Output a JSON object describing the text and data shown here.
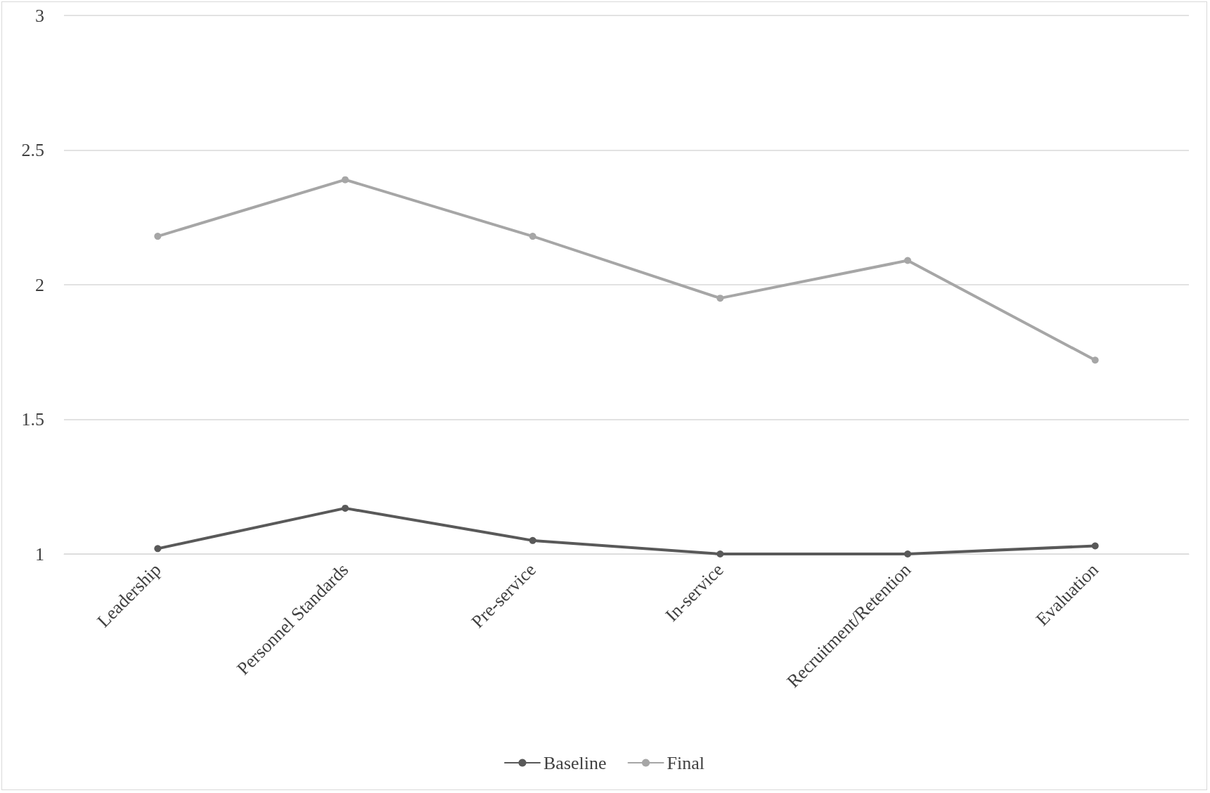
{
  "chart_data": {
    "type": "line",
    "categories": [
      "Leadership",
      "Personnel Standards",
      "Pre-service",
      "In-service",
      "Recruitment/Retention",
      "Evaluation"
    ],
    "series": [
      {
        "name": "Baseline",
        "color": "#595959",
        "values": [
          1.02,
          1.17,
          1.05,
          1.0,
          1.0,
          1.03
        ]
      },
      {
        "name": "Final",
        "color": "#a6a6a6",
        "values": [
          2.18,
          2.39,
          2.18,
          1.95,
          2.09,
          1.72
        ]
      }
    ],
    "ylim": [
      1,
      3
    ],
    "yticks": [
      1,
      1.5,
      2,
      2.5,
      3
    ],
    "grid": "y",
    "legend": "bottom",
    "marker": "circle",
    "line_style": "solid"
  }
}
